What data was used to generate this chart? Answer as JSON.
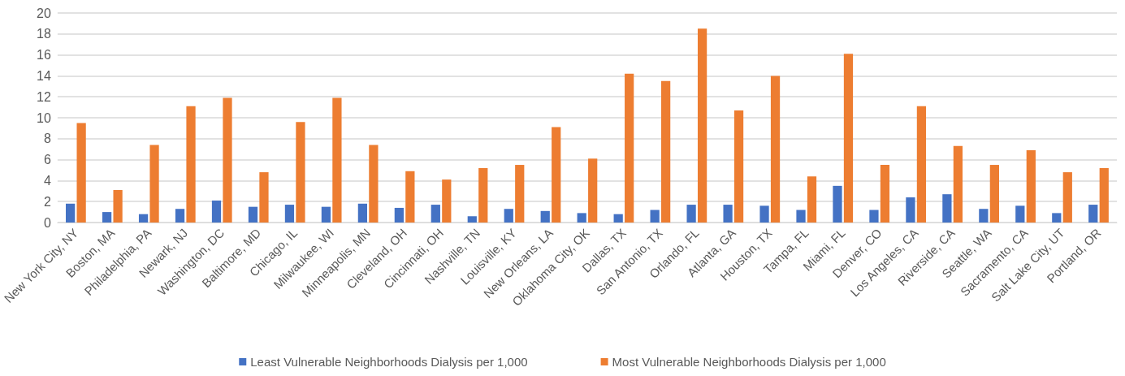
{
  "chart_data": {
    "type": "bar",
    "categories": [
      "New York City, NY",
      "Boston, MA",
      "Philadelphia, PA",
      "Newark, NJ",
      "Washington, DC",
      "Baltimore, MD",
      "Chicago, IL",
      "Milwaukee, WI",
      "Minneapolis, MN",
      "Cleveland, OH",
      "Cincinnati, OH",
      "Nashville, TN",
      "Louisville, KY",
      "New Orleans, LA",
      "Oklahoma City, OK",
      "Dallas, TX",
      "San Antonio, TX",
      "Orlando, FL",
      "Atlanta, GA",
      "Houston, TX",
      "Tampa, FL",
      "Miami, FL",
      "Denver, CO",
      "Los Angeles, CA",
      "Riverside, CA",
      "Seattle, WA",
      "Sacramento, CA",
      "Salt Lake City, UT",
      "Portland, OR"
    ],
    "series": [
      {
        "name": "Least Vulnerable Neighborhoods Dialysis per 1,000",
        "color": "#4472c4",
        "values": [
          1.8,
          1.0,
          0.8,
          1.3,
          2.1,
          1.5,
          1.7,
          1.5,
          1.8,
          1.4,
          1.7,
          0.6,
          1.3,
          1.1,
          0.9,
          0.8,
          1.2,
          1.7,
          1.7,
          1.6,
          1.2,
          3.5,
          1.2,
          2.4,
          2.7,
          1.3,
          1.6,
          0.9,
          1.7
        ]
      },
      {
        "name": "Most Vulnerable Neighborhoods Dialysis per 1,000",
        "color": "#ed7d31",
        "values": [
          9.5,
          3.1,
          7.4,
          11.1,
          11.9,
          4.8,
          9.6,
          11.9,
          7.4,
          4.9,
          4.1,
          5.2,
          5.5,
          9.1,
          6.1,
          14.2,
          13.5,
          18.5,
          10.7,
          14.0,
          4.4,
          16.1,
          5.5,
          11.1,
          7.3,
          5.5,
          6.9,
          4.8,
          5.2
        ]
      }
    ],
    "ylim": [
      0,
      20
    ],
    "yticks": [
      0,
      2,
      4,
      6,
      8,
      10,
      12,
      14,
      16,
      18,
      20
    ],
    "grid": "y",
    "legend": "bottom"
  }
}
